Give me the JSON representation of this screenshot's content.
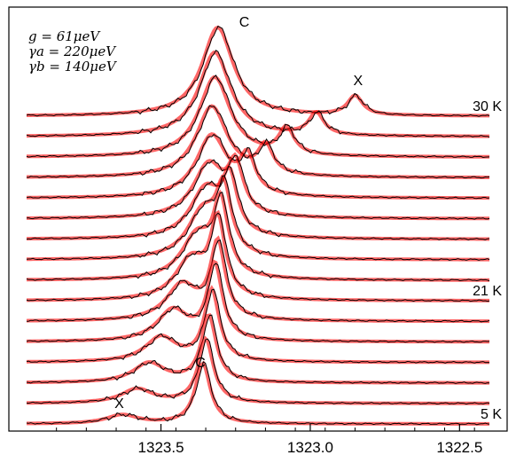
{
  "chart_data": {
    "type": "line",
    "title": "",
    "xlabel": "",
    "ylabel": "",
    "xlim": [
      1322.4,
      1323.95
    ],
    "xticks": [
      1322.5,
      1323.0,
      1323.5
    ],
    "xtick_labels": [
      "1322.5",
      "1323.0",
      "1323.5"
    ],
    "reversed_x": true,
    "grid": false,
    "params": [
      {
        "id": "g",
        "text": "g = 61μeV"
      },
      {
        "id": "gamma_a",
        "text": "γa = 220μeV"
      },
      {
        "id": "gamma_b",
        "text": "γb = 140μeV"
      }
    ],
    "temperature_labels": [
      {
        "text": "30 K",
        "trace": 0
      },
      {
        "text": "21 K",
        "trace": 9
      },
      {
        "text": "5 K",
        "trace": 15
      }
    ],
    "series_styles": {
      "measured": {
        "color": "#000000"
      },
      "fit": {
        "color": "#ff0000"
      }
    },
    "peak_labels": [
      {
        "text": "X",
        "x": 1322.84
      },
      {
        "text": "C",
        "x": 1323.31
      },
      {
        "text": "C",
        "x": 1323.35
      },
      {
        "text": "X",
        "x": 1323.64
      }
    ],
    "traces": [
      {
        "exciton": 1322.85,
        "cavity": 1323.31,
        "ex_amp": 0.22,
        "cav_amp": 1.0
      },
      {
        "exciton": 1322.98,
        "cavity": 1323.32,
        "ex_amp": 0.25,
        "cav_amp": 0.95
      },
      {
        "exciton": 1323.08,
        "cavity": 1323.32,
        "ex_amp": 0.3,
        "cav_amp": 0.9
      },
      {
        "exciton": 1323.15,
        "cavity": 1323.33,
        "ex_amp": 0.32,
        "cav_amp": 0.8
      },
      {
        "exciton": 1323.21,
        "cavity": 1323.33,
        "ex_amp": 0.4,
        "cav_amp": 0.7
      },
      {
        "exciton": 1323.25,
        "cavity": 1323.34,
        "ex_amp": 0.52,
        "cav_amp": 0.6
      },
      {
        "exciton": 1323.27,
        "cavity": 1323.35,
        "ex_amp": 0.6,
        "cav_amp": 0.55
      },
      {
        "exciton": 1323.29,
        "cavity": 1323.36,
        "ex_amp": 0.7,
        "cav_amp": 0.52
      },
      {
        "exciton": 1323.3,
        "cavity": 1323.38,
        "ex_amp": 0.8,
        "cav_amp": 0.48
      },
      {
        "exciton": 1323.31,
        "cavity": 1323.4,
        "ex_amp": 0.85,
        "cav_amp": 0.45
      },
      {
        "exciton": 1323.31,
        "cavity": 1323.43,
        "ex_amp": 0.85,
        "cav_amp": 0.4
      },
      {
        "exciton": 1323.32,
        "cavity": 1323.46,
        "ex_amp": 0.85,
        "cav_amp": 0.35
      },
      {
        "exciton": 1323.33,
        "cavity": 1323.5,
        "ex_amp": 0.8,
        "cav_amp": 0.28
      },
      {
        "exciton": 1323.34,
        "cavity": 1323.54,
        "ex_amp": 0.75,
        "cav_amp": 0.22
      },
      {
        "exciton": 1323.35,
        "cavity": 1323.58,
        "ex_amp": 0.72,
        "cav_amp": 0.16
      },
      {
        "exciton": 1323.36,
        "cavity": 1323.63,
        "ex_amp": 0.68,
        "cav_amp": 0.1
      }
    ]
  }
}
